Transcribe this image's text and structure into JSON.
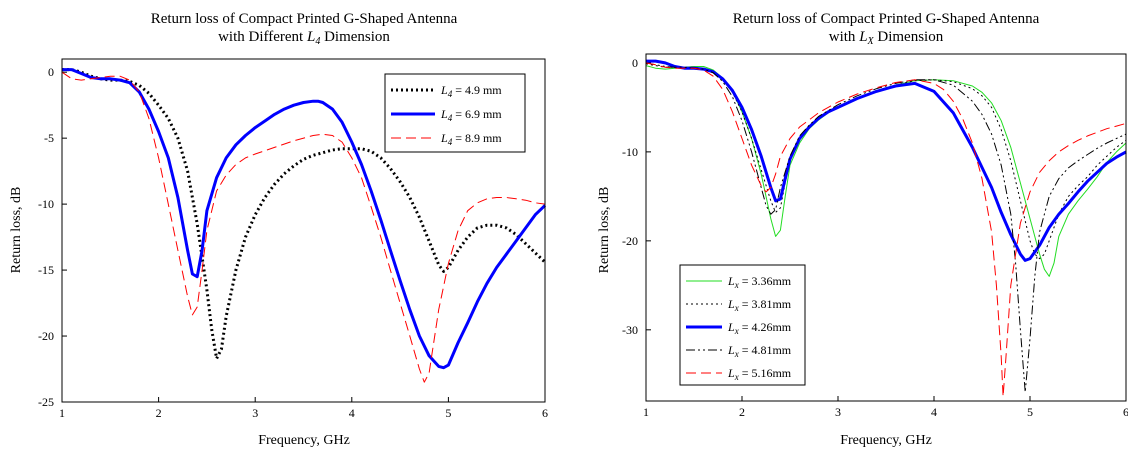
{
  "chart_data": [
    {
      "type": "line",
      "title_line1": "Return loss of Compact Printed G-Shaped Antenna",
      "title_line2_prefix": "with Different ",
      "title_line2_var": "L",
      "title_line2_sub": "4",
      "title_line2_suffix": " Dimension",
      "xlabel": "Frequency, GHz",
      "ylabel": "Return loss, dB",
      "xlim": [
        1,
        6
      ],
      "ylim": [
        -25,
        1
      ],
      "xticks": [
        1,
        2,
        3,
        4,
        5,
        6
      ],
      "yticks": [
        0,
        -5,
        -10,
        -15,
        -20,
        -25
      ],
      "legend_position": "top-right",
      "series": [
        {
          "name": "= 4.9 mm",
          "var": "L",
          "sub": "4",
          "color": "#000000",
          "dash": "dotted",
          "width": 3,
          "x": [
            1.0,
            1.1,
            1.2,
            1.3,
            1.4,
            1.5,
            1.6,
            1.7,
            1.8,
            1.9,
            2.0,
            2.1,
            2.2,
            2.3,
            2.4,
            2.5,
            2.55,
            2.6,
            2.65,
            2.7,
            2.8,
            2.9,
            3.0,
            3.1,
            3.2,
            3.3,
            3.4,
            3.5,
            3.6,
            3.7,
            3.8,
            3.9,
            4.0,
            4.1,
            4.2,
            4.3,
            4.4,
            4.5,
            4.6,
            4.7,
            4.8,
            4.9,
            4.95,
            5.0,
            5.1,
            5.2,
            5.3,
            5.4,
            5.5,
            5.6,
            5.7,
            5.8,
            5.9,
            6.0
          ],
          "y": [
            0.2,
            0.2,
            0.0,
            -0.3,
            -0.5,
            -0.6,
            -0.6,
            -0.7,
            -1.0,
            -1.6,
            -2.5,
            -3.5,
            -5.0,
            -7.5,
            -11.5,
            -16.5,
            -19.5,
            -21.7,
            -21.0,
            -18.5,
            -15.0,
            -12.5,
            -10.8,
            -9.5,
            -8.5,
            -7.7,
            -7.1,
            -6.6,
            -6.3,
            -6.1,
            -5.9,
            -5.8,
            -5.8,
            -5.8,
            -6.0,
            -6.5,
            -7.3,
            -8.3,
            -9.5,
            -11.0,
            -12.8,
            -14.6,
            -15.1,
            -14.8,
            -13.5,
            -12.5,
            -11.8,
            -11.6,
            -11.6,
            -11.8,
            -12.3,
            -13.0,
            -13.7,
            -14.4
          ]
        },
        {
          "name": "= 6.9 mm",
          "var": "L",
          "sub": "4",
          "color": "#0000ff",
          "dash": "solid",
          "width": 3,
          "x": [
            1.0,
            1.1,
            1.2,
            1.3,
            1.4,
            1.5,
            1.6,
            1.7,
            1.8,
            1.9,
            2.0,
            2.1,
            2.2,
            2.3,
            2.35,
            2.4,
            2.45,
            2.5,
            2.6,
            2.7,
            2.8,
            2.9,
            3.0,
            3.1,
            3.2,
            3.3,
            3.4,
            3.5,
            3.6,
            3.65,
            3.7,
            3.8,
            3.9,
            4.0,
            4.1,
            4.2,
            4.3,
            4.4,
            4.5,
            4.6,
            4.7,
            4.8,
            4.9,
            4.95,
            5.0,
            5.1,
            5.2,
            5.3,
            5.4,
            5.5,
            5.6,
            5.7,
            5.8,
            5.9,
            6.0
          ],
          "y": [
            0.2,
            0.2,
            -0.1,
            -0.4,
            -0.5,
            -0.5,
            -0.6,
            -0.8,
            -1.5,
            -2.8,
            -4.5,
            -6.5,
            -9.5,
            -13.5,
            -15.3,
            -15.5,
            -13.5,
            -10.5,
            -8.0,
            -6.5,
            -5.5,
            -4.8,
            -4.2,
            -3.7,
            -3.2,
            -2.8,
            -2.5,
            -2.3,
            -2.2,
            -2.2,
            -2.3,
            -2.8,
            -3.8,
            -5.3,
            -7.0,
            -9.0,
            -11.2,
            -13.5,
            -15.8,
            -18.0,
            -20.0,
            -21.5,
            -22.3,
            -22.4,
            -22.2,
            -20.5,
            -19.0,
            -17.4,
            -16.0,
            -14.8,
            -13.8,
            -12.8,
            -11.8,
            -10.8,
            -10.1
          ]
        },
        {
          "name": "= 8.9 mm",
          "var": "L",
          "sub": "4",
          "color": "#ff0000",
          "dash": "dashed",
          "width": 1,
          "x": [
            1.0,
            1.1,
            1.2,
            1.3,
            1.4,
            1.5,
            1.6,
            1.7,
            1.8,
            1.9,
            2.0,
            2.1,
            2.2,
            2.3,
            2.35,
            2.4,
            2.45,
            2.5,
            2.6,
            2.7,
            2.8,
            2.9,
            3.0,
            3.2,
            3.4,
            3.6,
            3.7,
            3.8,
            3.9,
            4.0,
            4.1,
            4.2,
            4.3,
            4.4,
            4.5,
            4.6,
            4.7,
            4.75,
            4.8,
            4.9,
            5.0,
            5.1,
            5.2,
            5.3,
            5.4,
            5.5,
            5.6,
            5.7,
            5.8,
            5.9,
            6.0
          ],
          "y": [
            0.0,
            -0.5,
            -0.6,
            -0.5,
            -0.4,
            -0.3,
            -0.3,
            -0.6,
            -1.5,
            -3.5,
            -6.5,
            -10.0,
            -13.5,
            -17.0,
            -18.4,
            -17.8,
            -15.0,
            -12.0,
            -9.0,
            -7.8,
            -7.0,
            -6.5,
            -6.2,
            -5.7,
            -5.2,
            -4.8,
            -4.7,
            -4.8,
            -5.3,
            -6.5,
            -8.0,
            -10.2,
            -12.5,
            -15.0,
            -17.5,
            -20.0,
            -22.5,
            -23.5,
            -22.8,
            -18.0,
            -14.5,
            -12.0,
            -10.5,
            -9.9,
            -9.6,
            -9.5,
            -9.5,
            -9.6,
            -9.7,
            -9.9,
            -10.0
          ]
        }
      ]
    },
    {
      "type": "line",
      "title_line1": "Return loss of Compact Printed G-Shaped Antenna",
      "title_line2_prefix": "with ",
      "title_line2_var": "L",
      "title_line2_sub": "X",
      "title_line2_suffix": " Dimension",
      "xlabel": "Frequency, GHz",
      "ylabel": "Return loss, dB",
      "xlim": [
        1,
        6
      ],
      "ylim": [
        -38,
        1
      ],
      "xticks": [
        1,
        2,
        3,
        4,
        5,
        6
      ],
      "yticks": [
        0,
        -10,
        -20,
        -30
      ],
      "legend_position": "bottom-left",
      "series": [
        {
          "name": "= 3.36mm",
          "var": "L",
          "sub": "x",
          "color": "#22dd22",
          "dash": "solid",
          "width": 1,
          "x": [
            1.0,
            1.1,
            1.2,
            1.3,
            1.4,
            1.5,
            1.6,
            1.7,
            1.8,
            1.9,
            2.0,
            2.1,
            2.2,
            2.3,
            2.35,
            2.4,
            2.45,
            2.5,
            2.6,
            2.7,
            2.8,
            2.9,
            3.0,
            3.2,
            3.4,
            3.6,
            3.8,
            4.0,
            4.2,
            4.4,
            4.5,
            4.6,
            4.7,
            4.8,
            4.9,
            5.0,
            5.1,
            5.15,
            5.2,
            5.25,
            5.3,
            5.4,
            5.5,
            5.6,
            5.7,
            5.8,
            5.9,
            6.0
          ],
          "y": [
            -0.3,
            -0.6,
            -0.7,
            -0.6,
            -0.5,
            -0.4,
            -0.4,
            -0.8,
            -1.7,
            -3.2,
            -5.5,
            -8.5,
            -12.5,
            -17.5,
            -19.5,
            -18.8,
            -15.0,
            -11.5,
            -9.0,
            -7.4,
            -6.4,
            -5.6,
            -5.0,
            -4.0,
            -3.2,
            -2.5,
            -2.0,
            -1.9,
            -2.0,
            -2.6,
            -3.3,
            -4.5,
            -6.5,
            -9.5,
            -13.5,
            -17.5,
            -21.5,
            -23.2,
            -24.0,
            -22.5,
            -19.5,
            -17.0,
            -15.5,
            -14.2,
            -12.8,
            -11.2,
            -10.0,
            -9.0
          ]
        },
        {
          "name": "= 3.81mm",
          "var": "L",
          "sub": "x",
          "color": "#000000",
          "dash": "dotted",
          "width": 1,
          "x": [
            1.0,
            1.1,
            1.2,
            1.3,
            1.4,
            1.5,
            1.6,
            1.7,
            1.8,
            1.9,
            2.0,
            2.1,
            2.2,
            2.3,
            2.35,
            2.4,
            2.45,
            2.5,
            2.6,
            2.7,
            2.8,
            3.0,
            3.2,
            3.4,
            3.6,
            3.8,
            4.0,
            4.2,
            4.4,
            4.5,
            4.6,
            4.7,
            4.8,
            4.9,
            5.0,
            5.05,
            5.1,
            5.15,
            5.2,
            5.3,
            5.4,
            5.5,
            5.6,
            5.7,
            5.8,
            5.9,
            6.0
          ],
          "y": [
            -0.1,
            -0.3,
            -0.5,
            -0.5,
            -0.5,
            -0.5,
            -0.6,
            -0.9,
            -1.8,
            -3.3,
            -5.5,
            -8.5,
            -12.0,
            -15.5,
            -16.8,
            -16.3,
            -13.5,
            -11.0,
            -8.7,
            -7.2,
            -6.2,
            -4.9,
            -4.0,
            -3.2,
            -2.5,
            -2.0,
            -1.9,
            -2.1,
            -2.9,
            -3.7,
            -5.0,
            -7.5,
            -11.0,
            -15.5,
            -20.0,
            -21.5,
            -22.0,
            -21.5,
            -20.0,
            -17.0,
            -15.0,
            -13.8,
            -12.8,
            -11.5,
            -10.5,
            -9.5,
            -8.7
          ]
        },
        {
          "name": "= 4.26mm",
          "var": "L",
          "sub": "x",
          "color": "#0000ff",
          "dash": "solid",
          "width": 3,
          "x": [
            1.0,
            1.1,
            1.2,
            1.3,
            1.4,
            1.5,
            1.6,
            1.7,
            1.8,
            1.9,
            2.0,
            2.1,
            2.2,
            2.3,
            2.35,
            2.4,
            2.45,
            2.5,
            2.6,
            2.7,
            2.8,
            2.9,
            3.0,
            3.2,
            3.4,
            3.6,
            3.8,
            4.0,
            4.2,
            4.4,
            4.6,
            4.7,
            4.8,
            4.9,
            4.95,
            5.0,
            5.1,
            5.2,
            5.3,
            5.4,
            5.5,
            5.6,
            5.7,
            5.8,
            5.9,
            6.0
          ],
          "y": [
            0.2,
            0.2,
            0.0,
            -0.4,
            -0.6,
            -0.6,
            -0.7,
            -1.0,
            -1.8,
            -3.1,
            -5.0,
            -7.5,
            -10.5,
            -14.0,
            -15.5,
            -15.3,
            -13.0,
            -10.8,
            -8.5,
            -7.2,
            -6.2,
            -5.5,
            -5.0,
            -4.0,
            -3.2,
            -2.6,
            -2.3,
            -3.2,
            -5.6,
            -9.5,
            -14.0,
            -16.8,
            -19.3,
            -21.5,
            -22.2,
            -22.0,
            -20.5,
            -18.5,
            -17.0,
            -15.8,
            -14.5,
            -13.3,
            -12.3,
            -11.3,
            -10.6,
            -10.0
          ]
        },
        {
          "name": "= 4.81mm",
          "var": "L",
          "sub": "x",
          "color": "#000000",
          "dash": "dashdotdot",
          "width": 1,
          "x": [
            1.0,
            1.1,
            1.2,
            1.3,
            1.4,
            1.5,
            1.6,
            1.7,
            1.8,
            1.9,
            2.0,
            2.1,
            2.2,
            2.25,
            2.3,
            2.35,
            2.4,
            2.5,
            2.6,
            2.7,
            2.8,
            3.0,
            3.2,
            3.4,
            3.6,
            3.8,
            4.0,
            4.2,
            4.4,
            4.5,
            4.6,
            4.7,
            4.8,
            4.85,
            4.9,
            4.95,
            5.0,
            5.05,
            5.1,
            5.2,
            5.3,
            5.4,
            5.5,
            5.6,
            5.7,
            5.8,
            5.9,
            6.0
          ],
          "y": [
            0.0,
            -0.2,
            -0.4,
            -0.5,
            -0.5,
            -0.6,
            -0.7,
            -1.1,
            -2.1,
            -3.8,
            -6.5,
            -10.0,
            -14.0,
            -16.0,
            -17.0,
            -16.5,
            -14.0,
            -10.5,
            -8.2,
            -7.0,
            -6.0,
            -4.7,
            -3.7,
            -2.9,
            -2.3,
            -1.9,
            -1.9,
            -2.5,
            -4.3,
            -5.8,
            -8.0,
            -11.5,
            -17.0,
            -22.5,
            -30.0,
            -37.0,
            -31.0,
            -24.0,
            -19.0,
            -15.0,
            -13.0,
            -11.8,
            -11.0,
            -10.3,
            -9.6,
            -9.0,
            -8.5,
            -8.0
          ]
        },
        {
          "name": "= 5.16mm",
          "var": "L",
          "sub": "x",
          "color": "#ff0000",
          "dash": "dashed",
          "width": 1,
          "x": [
            1.0,
            1.1,
            1.2,
            1.3,
            1.4,
            1.5,
            1.6,
            1.7,
            1.8,
            1.9,
            2.0,
            2.1,
            2.2,
            2.25,
            2.3,
            2.35,
            2.4,
            2.5,
            2.6,
            2.8,
            3.0,
            3.2,
            3.4,
            3.6,
            3.8,
            4.0,
            4.1,
            4.2,
            4.3,
            4.4,
            4.5,
            4.6,
            4.65,
            4.7,
            4.72,
            4.75,
            4.8,
            4.9,
            5.0,
            5.1,
            5.2,
            5.3,
            5.4,
            5.5,
            5.6,
            5.7,
            5.8,
            5.9,
            6.0
          ],
          "y": [
            0.0,
            -0.2,
            -0.5,
            -0.6,
            -0.6,
            -0.6,
            -0.8,
            -1.5,
            -3.0,
            -5.5,
            -8.5,
            -11.5,
            -13.8,
            -14.5,
            -14.0,
            -12.5,
            -10.5,
            -8.5,
            -7.2,
            -5.6,
            -4.4,
            -3.5,
            -2.8,
            -2.2,
            -1.9,
            -2.3,
            -3.0,
            -4.3,
            -6.3,
            -9.0,
            -13.0,
            -19.0,
            -25.0,
            -33.0,
            -37.5,
            -33.0,
            -25.0,
            -18.0,
            -14.5,
            -12.3,
            -11.0,
            -10.0,
            -9.3,
            -8.7,
            -8.2,
            -7.8,
            -7.4,
            -7.1,
            -6.8
          ]
        }
      ]
    }
  ]
}
